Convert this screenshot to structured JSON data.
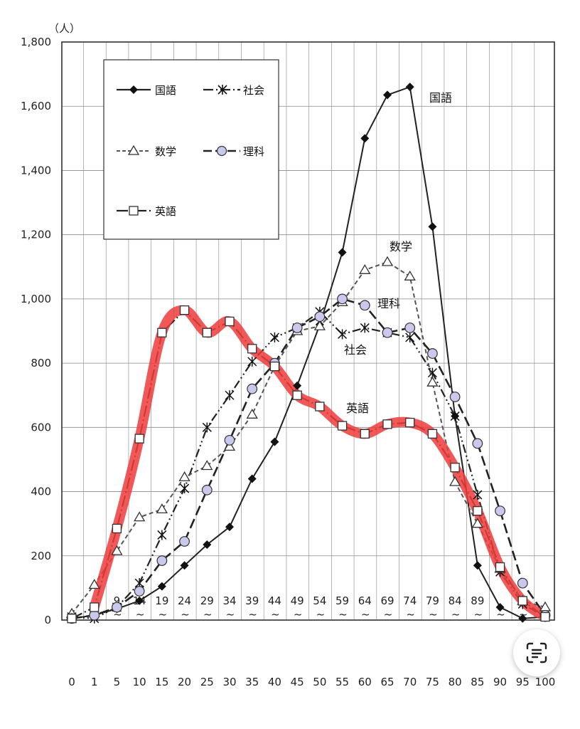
{
  "chart_data": {
    "type": "line",
    "y_unit": "（人）",
    "ylim": [
      0,
      1800
    ],
    "y_ticks": [
      "0",
      "200",
      "400",
      "600",
      "800",
      "1,000",
      "1,200",
      "1,400",
      "1,600",
      "1,800"
    ],
    "x_lower": [
      "0",
      "1",
      "5",
      "10",
      "15",
      "20",
      "25",
      "30",
      "35",
      "40",
      "45",
      "50",
      "55",
      "60",
      "65",
      "70",
      "75",
      "80",
      "85",
      "90",
      "95",
      "100"
    ],
    "x_upper": [
      "",
      "",
      "9",
      "14",
      "19",
      "24",
      "29",
      "34",
      "39",
      "44",
      "49",
      "54",
      "59",
      "64",
      "69",
      "74",
      "79",
      "84",
      "89",
      "",
      "",
      ""
    ],
    "grid": true,
    "legend": "top-left",
    "series": [
      {
        "name": "国語",
        "values": [
          5,
          15,
          35,
          60,
          105,
          170,
          235,
          290,
          440,
          555,
          730,
          920,
          1145,
          1500,
          1635,
          1660,
          1225,
          635,
          170,
          40,
          5,
          10
        ]
      },
      {
        "name": "社会",
        "values": [
          10,
          5,
          40,
          115,
          265,
          410,
          600,
          700,
          805,
          880,
          910,
          960,
          890,
          910,
          895,
          880,
          770,
          635,
          390,
          150,
          50,
          10
        ]
      },
      {
        "name": "数学",
        "values": [
          20,
          110,
          215,
          320,
          345,
          445,
          480,
          540,
          640,
          790,
          900,
          915,
          990,
          1090,
          1115,
          1070,
          740,
          430,
          300,
          160,
          60,
          40
        ]
      },
      {
        "name": "理科",
        "values": [
          5,
          15,
          40,
          90,
          185,
          245,
          405,
          560,
          720,
          800,
          910,
          945,
          1000,
          980,
          895,
          910,
          830,
          695,
          550,
          340,
          115,
          15
        ]
      },
      {
        "name": "英語",
        "values": [
          5,
          40,
          285,
          565,
          895,
          965,
          895,
          930,
          845,
          790,
          700,
          665,
          605,
          580,
          610,
          615,
          580,
          475,
          340,
          165,
          60,
          10
        ]
      }
    ],
    "annotations": [
      "国語",
      "数学",
      "理科",
      "社会",
      "英語"
    ]
  },
  "icons": {
    "lens_button": "text-scan-icon"
  }
}
